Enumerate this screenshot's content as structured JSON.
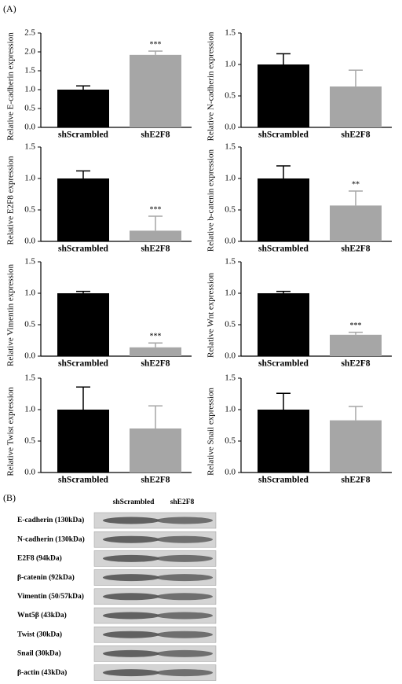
{
  "panel_labels": [
    "(A)",
    "(B)"
  ],
  "chart_data": [
    {
      "type": "bar",
      "ylabel": "Relative E-cadherin expression",
      "categories": [
        "shScrambled",
        "shE2F8"
      ],
      "values": [
        1.0,
        1.92
      ],
      "errors": [
        0.1,
        0.1
      ],
      "colors": [
        "#000000",
        "#a6a6a6"
      ],
      "ylim": [
        0,
        2.5
      ],
      "yticks": [
        {
          "value": 0,
          "label": "0.0"
        },
        0.5,
        {
          "value": 1,
          "label": "1.0"
        },
        1.5,
        {
          "value": 2,
          "label": "2.0"
        },
        2.5
      ],
      "annotations": [
        {
          "text": "***",
          "category": "shE2F8"
        }
      ]
    },
    {
      "type": "bar",
      "ylabel": "Relative N-cadherin expression",
      "categories": [
        "shScrambled",
        "shE2F8"
      ],
      "values": [
        1.0,
        0.65
      ],
      "errors": [
        0.17,
        0.26
      ],
      "colors": [
        "#000000",
        "#a6a6a6"
      ],
      "ylim": [
        0,
        1.5
      ],
      "yticks": [
        {
          "value": 0,
          "label": "0.0"
        },
        0.5,
        {
          "value": 1,
          "label": "1.0"
        },
        1.5
      ],
      "annotations": []
    },
    {
      "type": "bar",
      "ylabel": "Relative E2F8 expression",
      "categories": [
        "shScrambled",
        "shE2F8"
      ],
      "values": [
        1.0,
        0.17
      ],
      "errors": [
        0.12,
        0.23
      ],
      "colors": [
        "#000000",
        "#a6a6a6"
      ],
      "ylim": [
        0,
        1.5
      ],
      "yticks": [
        {
          "value": 0,
          "label": "0.0"
        },
        0.5,
        {
          "value": 1,
          "label": "1.0"
        },
        1.5
      ],
      "annotations": [
        {
          "text": "***",
          "category": "shE2F8"
        }
      ]
    },
    {
      "type": "bar",
      "ylabel": "Relative b-catenin expression",
      "categories": [
        "shScrambled",
        "shE2F8"
      ],
      "values": [
        1.0,
        0.57
      ],
      "errors": [
        0.2,
        0.23
      ],
      "colors": [
        "#000000",
        "#a6a6a6"
      ],
      "ylim": [
        0,
        1.5
      ],
      "yticks": [
        {
          "value": 0,
          "label": "0.0"
        },
        0.5,
        {
          "value": 1,
          "label": "1.0"
        },
        1.5
      ],
      "annotations": [
        {
          "text": "**",
          "category": "shE2F8"
        }
      ]
    },
    {
      "type": "bar",
      "ylabel": "Relative Vimentin expression",
      "categories": [
        "shScrambled",
        "shE2F8"
      ],
      "values": [
        1.0,
        0.14
      ],
      "errors": [
        0.03,
        0.07
      ],
      "colors": [
        "#000000",
        "#a6a6a6"
      ],
      "ylim": [
        0,
        1.5
      ],
      "yticks": [
        {
          "value": 0,
          "label": "0.0"
        },
        0.5,
        {
          "value": 1,
          "label": "1.0"
        },
        1.5
      ],
      "annotations": [
        {
          "text": "***",
          "category": "shE2F8"
        }
      ]
    },
    {
      "type": "bar",
      "ylabel": "Relative Wnt expression",
      "categories": [
        "shScrambled",
        "shE2F8"
      ],
      "values": [
        1.0,
        0.34
      ],
      "errors": [
        0.03,
        0.04
      ],
      "colors": [
        "#000000",
        "#a6a6a6"
      ],
      "ylim": [
        0,
        1.5
      ],
      "yticks": [
        {
          "value": 0,
          "label": "0.0"
        },
        0.5,
        {
          "value": 1,
          "label": "1.0"
        },
        1.5
      ],
      "annotations": [
        {
          "text": "***",
          "category": "shE2F8"
        }
      ]
    },
    {
      "type": "bar",
      "ylabel": "Relative Twist expression",
      "categories": [
        "shScrambled",
        "shE2F8"
      ],
      "values": [
        1.0,
        0.7
      ],
      "errors": [
        0.36,
        0.36
      ],
      "colors": [
        "#000000",
        "#a6a6a6"
      ],
      "ylim": [
        0,
        1.5
      ],
      "yticks": [
        {
          "value": 0,
          "label": "0.0"
        },
        0.5,
        {
          "value": 1,
          "label": "1.0"
        },
        1.5
      ],
      "annotations": []
    },
    {
      "type": "bar",
      "ylabel": "Relative Snail expression",
      "categories": [
        "shScrambled",
        "shE2F8"
      ],
      "values": [
        1.0,
        0.83
      ],
      "errors": [
        0.26,
        0.22
      ],
      "colors": [
        "#000000",
        "#a6a6a6"
      ],
      "ylim": [
        0,
        1.5
      ],
      "yticks": [
        {
          "value": 0,
          "label": "0.0"
        },
        0.5,
        {
          "value": 1,
          "label": "1.0"
        },
        1.5
      ],
      "annotations": []
    }
  ],
  "blot": {
    "columns": [
      "shScrambled",
      "shE2F8"
    ],
    "rows": [
      "E-cadherin (130kDa)",
      "N-cadherin (130kDa)",
      "E2F8 (94kDa)",
      "β-catenin (92kDa)",
      "Vimentin (50/57kDa)",
      "Wnt5β (43kDa)",
      "Twist (30kDa)",
      "Snail (30kDa)",
      "β-actin (43kDa)"
    ]
  }
}
